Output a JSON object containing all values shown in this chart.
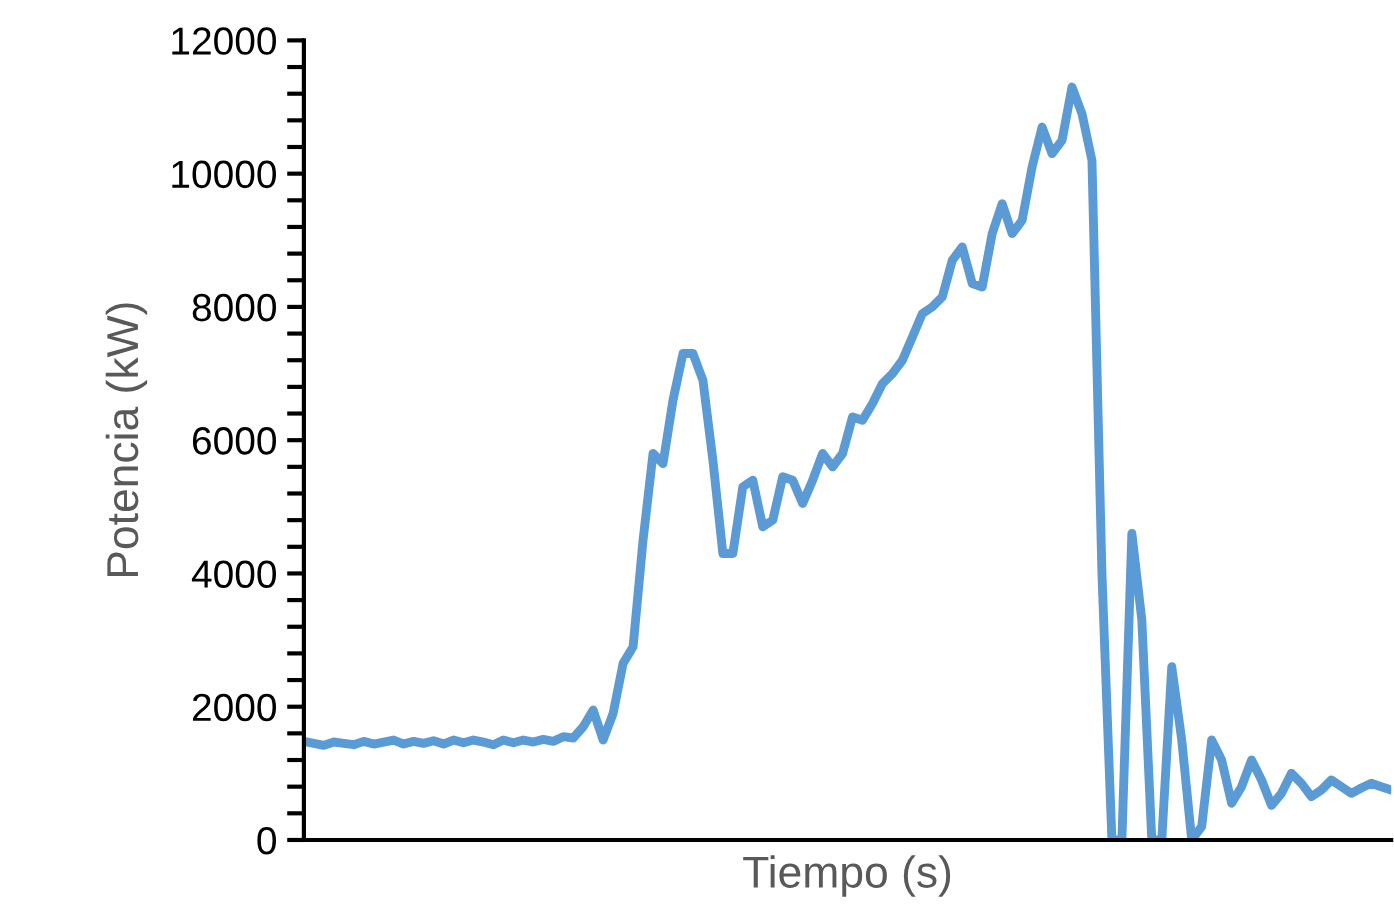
{
  "chart_data": {
    "type": "line",
    "xlabel": "Tiempo (s)",
    "ylabel": "Potencia (kW)",
    "categories": [
      null,
      null,
      null,
      null,
      null,
      null,
      null,
      null,
      null,
      null,
      null,
      null,
      null,
      null,
      null,
      null,
      null,
      null,
      null,
      null,
      null,
      null,
      null,
      null,
      null,
      null,
      null,
      null,
      null,
      null,
      null,
      null,
      null,
      null,
      null,
      null,
      null,
      null,
      null,
      null,
      null,
      null,
      null,
      null,
      null,
      null,
      null,
      null,
      null,
      null,
      null,
      null,
      null,
      null,
      null,
      null,
      null,
      null,
      null,
      null,
      null,
      null,
      null,
      null,
      null,
      null,
      null,
      null,
      null,
      null,
      null,
      null,
      null,
      null,
      null,
      null,
      null,
      null,
      null,
      null,
      null,
      null,
      null,
      null,
      null,
      null,
      null,
      null,
      null,
      null,
      null,
      null,
      null,
      null,
      null,
      null,
      null,
      null,
      null,
      null,
      null,
      null,
      null,
      null,
      null,
      null,
      null,
      null,
      null,
      null
    ],
    "series": [
      {
        "color": "#5b9bd5",
        "values": [
          1480,
          1450,
          1420,
          1470,
          1450,
          1430,
          1480,
          1440,
          1470,
          1500,
          1440,
          1480,
          1450,
          1490,
          1440,
          1500,
          1460,
          1500,
          1470,
          1430,
          1500,
          1460,
          1500,
          1470,
          1510,
          1480,
          1550,
          1530,
          1700,
          1950,
          1500,
          1900,
          2650,
          2900,
          4500,
          5800,
          5650,
          6600,
          7300,
          7300,
          6900,
          5700,
          4300,
          4300,
          5300,
          5400,
          4700,
          4800,
          5450,
          5400,
          5050,
          5400,
          5800,
          5600,
          5800,
          6350,
          6300,
          6550,
          6850,
          7000,
          7200,
          7550,
          7900,
          8000,
          8150,
          8700,
          8900,
          8350,
          8300,
          9100,
          9550,
          9100,
          9300,
          10100,
          10700,
          10300,
          10500,
          11300,
          10900,
          10200,
          4000,
          0,
          0,
          4600,
          3300,
          0,
          0,
          2600,
          1500,
          0,
          200,
          1500,
          1200,
          550,
          800,
          1200,
          900,
          520,
          700,
          1000,
          850,
          650,
          750,
          900,
          800,
          700,
          780,
          850,
          800,
          750
        ]
      }
    ],
    "ylim": [
      0,
      12000
    ],
    "yticks": [
      0,
      {
        "value": 400,
        "label": null
      },
      {
        "value": 800,
        "label": null
      },
      {
        "value": 1200,
        "label": null
      },
      {
        "value": 1600,
        "label": null
      },
      2000,
      {
        "value": 2400,
        "label": null
      },
      {
        "value": 2800,
        "label": null
      },
      {
        "value": 3200,
        "label": null
      },
      {
        "value": 3600,
        "label": null
      },
      4000,
      {
        "value": 4400,
        "label": null
      },
      {
        "value": 4800,
        "label": null
      },
      {
        "value": 5200,
        "label": null
      },
      {
        "value": 5600,
        "label": null
      },
      6000,
      {
        "value": 6400,
        "label": null
      },
      {
        "value": 6800,
        "label": null
      },
      {
        "value": 7200,
        "label": null
      },
      {
        "value": 7600,
        "label": null
      },
      8000,
      {
        "value": 8400,
        "label": null
      },
      {
        "value": 8800,
        "label": null
      },
      {
        "value": 9200,
        "label": null
      },
      {
        "value": 9600,
        "label": null
      },
      10000,
      {
        "value": 10400,
        "label": null
      },
      {
        "value": 10800,
        "label": null
      },
      {
        "value": 11200,
        "label": null
      },
      {
        "value": 11600,
        "label": null
      },
      12000
    ],
    "grid": false,
    "marker": "none",
    "line_style": "solid"
  }
}
